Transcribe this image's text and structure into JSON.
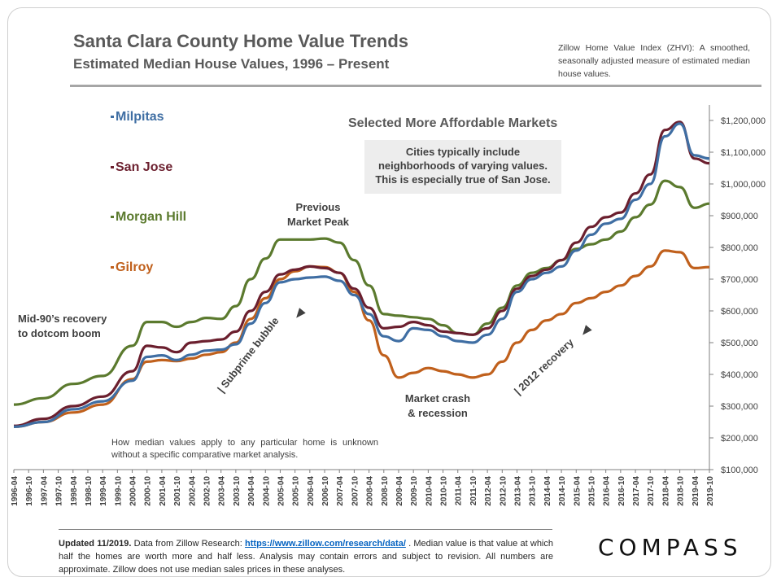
{
  "header": {
    "title": "Santa Clara County Home Value Trends",
    "subtitle": "Estimated Median House Values, 1996 – Present",
    "zhvi_note": "Zillow Home Value Index (ZHVI): A smoothed, seasonally adjusted measure of estimated median house values."
  },
  "legend": {
    "items": [
      {
        "label": "Milpitas",
        "color": "#3f6ea3"
      },
      {
        "label": "San Jose",
        "color": "#6b1f2e"
      },
      {
        "label": "Morgan Hill",
        "color": "#5b7a2e"
      },
      {
        "label": "Gilroy",
        "color": "#c0601c"
      }
    ]
  },
  "annotations": {
    "affordable_title": "Selected More Affordable Markets",
    "box_line1": "Cities typically include",
    "box_line2": "neighborhoods of varying values.",
    "box_line3": "This is especially true of San Jose.",
    "peak_line1": "Previous",
    "peak_line2": "Market Peak",
    "recovery90_line1": "Mid-90’s recovery",
    "recovery90_line2": "to dotcom boom",
    "subprime": "| Subprime bubble",
    "crash_line1": "Market crash",
    "crash_line2": "& recession",
    "recovery2012": "| 2012 recovery",
    "median_note": "How median values apply to any particular home is unknown without a specific comparative market analysis."
  },
  "footer": {
    "updated": "Updated 11/2019.",
    "text1": " Data from Zillow Research: ",
    "link": "https://www.zillow.com/research/data/",
    "text2": " . Median value is that value at which half the homes are worth more and half less. Analysis may contain errors and subject to revision. All numbers are approximate. Zillow does not use median sales prices in these analyses.",
    "brand": "COMPASS"
  },
  "chart_data": {
    "type": "line",
    "x_range": [
      "1996-04",
      "2019-10"
    ],
    "x_tick_labels": [
      "1996-04",
      "1996-10",
      "1997-04",
      "1997-10",
      "1998-04",
      "1998-10",
      "1999-04",
      "1999-10",
      "2000-04",
      "2000-10",
      "2001-04",
      "2001-10",
      "2002-04",
      "2002-10",
      "2003-04",
      "2003-10",
      "2004-04",
      "2004-10",
      "2005-04",
      "2005-10",
      "2006-04",
      "2006-10",
      "2007-04",
      "2007-10",
      "2008-04",
      "2008-10",
      "2009-04",
      "2009-10",
      "2010-04",
      "2010-10",
      "2011-04",
      "2011-10",
      "2012-04",
      "2012-10",
      "2013-04",
      "2013-10",
      "2014-04",
      "2014-10",
      "2015-04",
      "2015-10",
      "2016-04",
      "2016-10",
      "2017-04",
      "2017-10",
      "2018-04",
      "2018-10",
      "2019-04",
      "2019-10"
    ],
    "y_tick_labels": [
      "$100,000",
      "$200,000",
      "$300,000",
      "$400,000",
      "$500,000",
      "$600,000",
      "$700,000",
      "$800,000",
      "$900,000",
      "$1,000,000",
      "$1,100,000",
      "$1,200,000"
    ],
    "ylim": [
      100000,
      1200000
    ],
    "series": [
      {
        "name": "Milpitas",
        "color": "#3f6ea3",
        "x": [
          "1996-04",
          "1997-04",
          "1998-04",
          "1999-04",
          "2000-04",
          "2000-10",
          "2001-04",
          "2001-10",
          "2002-04",
          "2002-10",
          "2003-04",
          "2003-10",
          "2004-04",
          "2004-10",
          "2005-04",
          "2005-10",
          "2006-04",
          "2006-10",
          "2007-04",
          "2007-10",
          "2008-04",
          "2008-10",
          "2009-04",
          "2009-10",
          "2010-04",
          "2010-10",
          "2011-04",
          "2011-10",
          "2012-04",
          "2012-10",
          "2013-04",
          "2013-10",
          "2014-04",
          "2014-10",
          "2015-04",
          "2015-10",
          "2016-04",
          "2016-10",
          "2017-04",
          "2017-10",
          "2018-04",
          "2018-10",
          "2019-04",
          "2019-10"
        ],
        "values": [
          235000,
          250000,
          290000,
          315000,
          380000,
          455000,
          460000,
          445000,
          462000,
          475000,
          478000,
          495000,
          560000,
          625000,
          690000,
          700000,
          705000,
          708000,
          695000,
          650000,
          590000,
          520000,
          505000,
          545000,
          540000,
          520000,
          505000,
          500000,
          525000,
          575000,
          660000,
          700000,
          720000,
          740000,
          790000,
          840000,
          875000,
          890000,
          950000,
          1000000,
          1150000,
          1190000,
          1090000,
          1080000
        ]
      },
      {
        "name": "San Jose",
        "color": "#6b1f2e",
        "x": [
          "1996-04",
          "1997-04",
          "1998-04",
          "1999-04",
          "2000-04",
          "2000-10",
          "2001-04",
          "2001-10",
          "2002-04",
          "2002-10",
          "2003-04",
          "2003-10",
          "2004-04",
          "2004-10",
          "2005-04",
          "2005-10",
          "2006-04",
          "2006-10",
          "2007-04",
          "2007-10",
          "2008-04",
          "2008-10",
          "2009-04",
          "2009-10",
          "2010-04",
          "2010-10",
          "2011-04",
          "2011-10",
          "2012-04",
          "2012-10",
          "2013-04",
          "2013-10",
          "2014-04",
          "2014-10",
          "2015-04",
          "2015-10",
          "2016-04",
          "2016-10",
          "2017-04",
          "2017-10",
          "2018-04",
          "2018-10",
          "2019-04",
          "2019-10"
        ],
        "values": [
          238000,
          260000,
          300000,
          330000,
          410000,
          490000,
          485000,
          470000,
          500000,
          505000,
          510000,
          535000,
          600000,
          660000,
          715000,
          730000,
          740000,
          735000,
          720000,
          670000,
          610000,
          545000,
          550000,
          565000,
          555000,
          535000,
          530000,
          525000,
          545000,
          600000,
          670000,
          710000,
          730000,
          760000,
          815000,
          865000,
          895000,
          910000,
          970000,
          1030000,
          1170000,
          1195000,
          1080000,
          1065000
        ]
      },
      {
        "name": "Morgan Hill",
        "color": "#5b7a2e",
        "x": [
          "1996-04",
          "1997-04",
          "1998-04",
          "1999-04",
          "2000-04",
          "2000-10",
          "2001-04",
          "2001-10",
          "2002-04",
          "2002-10",
          "2003-04",
          "2003-10",
          "2004-04",
          "2004-10",
          "2005-04",
          "2005-10",
          "2006-04",
          "2006-10",
          "2007-04",
          "2007-10",
          "2008-04",
          "2008-10",
          "2009-04",
          "2009-10",
          "2010-04",
          "2010-10",
          "2011-04",
          "2011-10",
          "2012-04",
          "2012-10",
          "2013-04",
          "2013-10",
          "2014-04",
          "2014-10",
          "2015-04",
          "2015-10",
          "2016-04",
          "2016-10",
          "2017-04",
          "2017-10",
          "2018-04",
          "2018-10",
          "2019-04",
          "2019-10"
        ],
        "values": [
          305000,
          325000,
          370000,
          395000,
          490000,
          565000,
          565000,
          550000,
          565000,
          578000,
          575000,
          615000,
          700000,
          765000,
          825000,
          825000,
          825000,
          828000,
          815000,
          760000,
          680000,
          590000,
          585000,
          580000,
          575000,
          555000,
          530000,
          525000,
          560000,
          610000,
          680000,
          720000,
          735000,
          760000,
          795000,
          810000,
          825000,
          850000,
          895000,
          935000,
          1010000,
          990000,
          925000,
          938000
        ]
      },
      {
        "name": "Gilroy",
        "color": "#c0601c",
        "x": [
          "1996-04",
          "1997-04",
          "1998-04",
          "1999-04",
          "2000-04",
          "2000-10",
          "2001-04",
          "2001-10",
          "2002-04",
          "2002-10",
          "2003-04",
          "2003-10",
          "2004-04",
          "2004-10",
          "2005-04",
          "2005-10",
          "2006-04",
          "2006-10",
          "2007-04",
          "2007-10",
          "2008-04",
          "2008-10",
          "2009-04",
          "2009-10",
          "2010-04",
          "2010-10",
          "2011-04",
          "2011-10",
          "2012-04",
          "2012-10",
          "2013-04",
          "2013-10",
          "2014-04",
          "2014-10",
          "2015-04",
          "2015-10",
          "2016-04",
          "2016-10",
          "2017-04",
          "2017-10",
          "2018-04",
          "2018-10",
          "2019-04",
          "2019-10"
        ],
        "values": [
          235000,
          250000,
          280000,
          305000,
          385000,
          440000,
          445000,
          442000,
          450000,
          462000,
          470000,
          500000,
          575000,
          640000,
          700000,
          725000,
          740000,
          738000,
          720000,
          660000,
          570000,
          460000,
          390000,
          405000,
          420000,
          410000,
          400000,
          390000,
          400000,
          440000,
          500000,
          540000,
          570000,
          590000,
          625000,
          640000,
          660000,
          680000,
          710000,
          740000,
          790000,
          785000,
          735000,
          738000
        ]
      }
    ]
  }
}
